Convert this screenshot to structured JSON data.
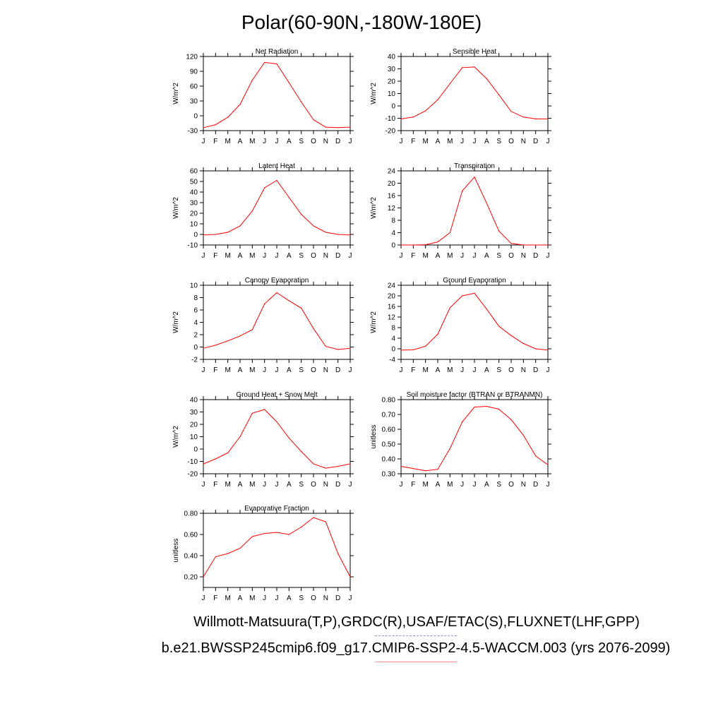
{
  "page": {
    "title": "Polar(60-90N,-180W-180E)",
    "footer_obs": "Willmott-Matsuura(T,P),GRDC(R),USAF/ETAC(S),FLUXNET(LHF,GPP)",
    "footer_model": "b.e21.BWSSP245cmip6.f09_g17.CMIP6-SSP2-4.5-WACCM.003 (yrs 2076-2099)",
    "line_color": "#ff0000",
    "obs_legend_color": "#8f8ff0",
    "model_legend_color": "#f08f8f"
  },
  "chart_data": [
    {
      "type": "line",
      "title": "Net Radiation",
      "ylabel": "W/m^2",
      "categories": [
        "J",
        "F",
        "M",
        "A",
        "M",
        "J",
        "J",
        "A",
        "S",
        "O",
        "N",
        "D",
        "J"
      ],
      "ylim": [
        -30,
        120
      ],
      "yticks": [
        -30,
        0,
        30,
        60,
        90,
        120
      ],
      "ytick_labels": [
        "-30",
        "0",
        "30",
        "60",
        "90",
        "120"
      ],
      "values": [
        -24,
        -18,
        -3,
        23,
        72,
        108,
        105,
        67,
        28,
        -8,
        -23,
        -24,
        -23
      ]
    },
    {
      "type": "line",
      "title": "Sensible Heat",
      "ylabel": "W/m^2",
      "categories": [
        "J",
        "F",
        "M",
        "A",
        "M",
        "J",
        "J",
        "A",
        "S",
        "O",
        "N",
        "D",
        "J"
      ],
      "ylim": [
        -20,
        40
      ],
      "yticks": [
        -20,
        -10,
        0,
        10,
        20,
        30,
        40
      ],
      "ytick_labels": [
        "-20",
        "-10",
        "0",
        "10",
        "20",
        "30",
        "40"
      ],
      "values": [
        -10.5,
        -9,
        -4,
        5,
        18,
        31,
        31.5,
        22,
        9,
        -4.5,
        -9,
        -10.5,
        -10.5
      ]
    },
    {
      "type": "line",
      "title": "Latent Heat",
      "ylabel": "W/m^2",
      "categories": [
        "J",
        "F",
        "M",
        "A",
        "M",
        "J",
        "J",
        "A",
        "S",
        "O",
        "N",
        "D",
        "J"
      ],
      "ylim": [
        -10,
        60
      ],
      "yticks": [
        -10,
        0,
        10,
        20,
        30,
        40,
        50,
        60
      ],
      "ytick_labels": [
        "-10",
        "0",
        "10",
        "20",
        "30",
        "40",
        "50",
        "60"
      ],
      "values": [
        -0.5,
        0,
        2,
        8,
        22,
        44,
        51,
        35,
        19,
        8,
        2,
        0,
        -0.5
      ]
    },
    {
      "type": "line",
      "title": "Transpiration",
      "ylabel": "W/m^2",
      "categories": [
        "J",
        "F",
        "M",
        "A",
        "M",
        "J",
        "J",
        "A",
        "S",
        "O",
        "N",
        "D",
        "J"
      ],
      "ylim": [
        0,
        24
      ],
      "yticks": [
        0,
        4,
        8,
        12,
        16,
        20,
        24
      ],
      "ytick_labels": [
        "0",
        "4",
        "8",
        "12",
        "16",
        "20",
        "24"
      ],
      "values": [
        0,
        0,
        0.1,
        1,
        4,
        17.5,
        22,
        13.5,
        4.5,
        0.5,
        0,
        0,
        0
      ]
    },
    {
      "type": "line",
      "title": "Canopy Evaporation",
      "ylabel": "W/m^2",
      "categories": [
        "J",
        "F",
        "M",
        "A",
        "M",
        "J",
        "J",
        "A",
        "S",
        "O",
        "N",
        "D",
        "J"
      ],
      "ylim": [
        -2,
        10
      ],
      "yticks": [
        -2,
        0,
        2,
        4,
        6,
        8,
        10
      ],
      "ytick_labels": [
        "-2",
        "0",
        "2",
        "4",
        "6",
        "8",
        "10"
      ],
      "values": [
        -0.2,
        0.3,
        1,
        1.8,
        2.8,
        7,
        8.8,
        7.5,
        6.3,
        3,
        0.1,
        -0.4,
        -0.2
      ]
    },
    {
      "type": "line",
      "title": "Ground Evaporation",
      "ylabel": "W/m^2",
      "categories": [
        "J",
        "F",
        "M",
        "A",
        "M",
        "J",
        "J",
        "A",
        "S",
        "O",
        "N",
        "D",
        "J"
      ],
      "ylim": [
        -4,
        24
      ],
      "yticks": [
        -4,
        0,
        4,
        8,
        12,
        16,
        20,
        24
      ],
      "ytick_labels": [
        "-4",
        "0",
        "4",
        "8",
        "12",
        "16",
        "20",
        "24"
      ],
      "values": [
        -0.5,
        -0.4,
        1,
        5.5,
        15.5,
        20,
        21,
        15,
        8.5,
        5,
        2,
        0,
        -0.5
      ]
    },
    {
      "type": "line",
      "title": "Ground Heat + Snow Melt",
      "ylabel": "W/m^2",
      "categories": [
        "J",
        "F",
        "M",
        "A",
        "M",
        "J",
        "J",
        "A",
        "S",
        "O",
        "N",
        "D",
        "J"
      ],
      "ylim": [
        -20,
        40
      ],
      "yticks": [
        -20,
        -10,
        0,
        10,
        20,
        30,
        40
      ],
      "ytick_labels": [
        "-20",
        "-10",
        "0",
        "10",
        "20",
        "30",
        "40"
      ],
      "values": [
        -12,
        -8,
        -3,
        10,
        29,
        32,
        22,
        9,
        -2,
        -12,
        -15.5,
        -14,
        -12
      ]
    },
    {
      "type": "line",
      "title": "Soil moisture factor (BTRAN or BTRANMN)",
      "ylabel": "unitless",
      "categories": [
        "J",
        "F",
        "M",
        "A",
        "M",
        "J",
        "J",
        "A",
        "S",
        "O",
        "N",
        "D",
        "J"
      ],
      "ylim": [
        0.3,
        0.8
      ],
      "yticks": [
        0.3,
        0.4,
        0.5,
        0.6,
        0.7,
        0.8
      ],
      "ytick_labels": [
        "0.30",
        "0.40",
        "0.50",
        "0.60",
        "0.70",
        "0.80"
      ],
      "values": [
        0.35,
        0.335,
        0.32,
        0.33,
        0.47,
        0.65,
        0.75,
        0.755,
        0.735,
        0.665,
        0.56,
        0.42,
        0.36
      ]
    },
    {
      "type": "line",
      "title": "Evaporative Fraction",
      "ylabel": "unitless",
      "categories": [
        "J",
        "F",
        "M",
        "A",
        "M",
        "J",
        "J",
        "A",
        "S",
        "O",
        "N",
        "D",
        "J"
      ],
      "ylim": [
        0.1,
        0.8
      ],
      "yticks": [
        0.2,
        0.4,
        0.6,
        0.8
      ],
      "ytick_labels": [
        "0.20",
        "0.40",
        "0.60",
        "0.80"
      ],
      "values": [
        0.2,
        0.39,
        0.42,
        0.47,
        0.58,
        0.61,
        0.62,
        0.6,
        0.67,
        0.76,
        0.72,
        0.42,
        0.2
      ]
    }
  ]
}
